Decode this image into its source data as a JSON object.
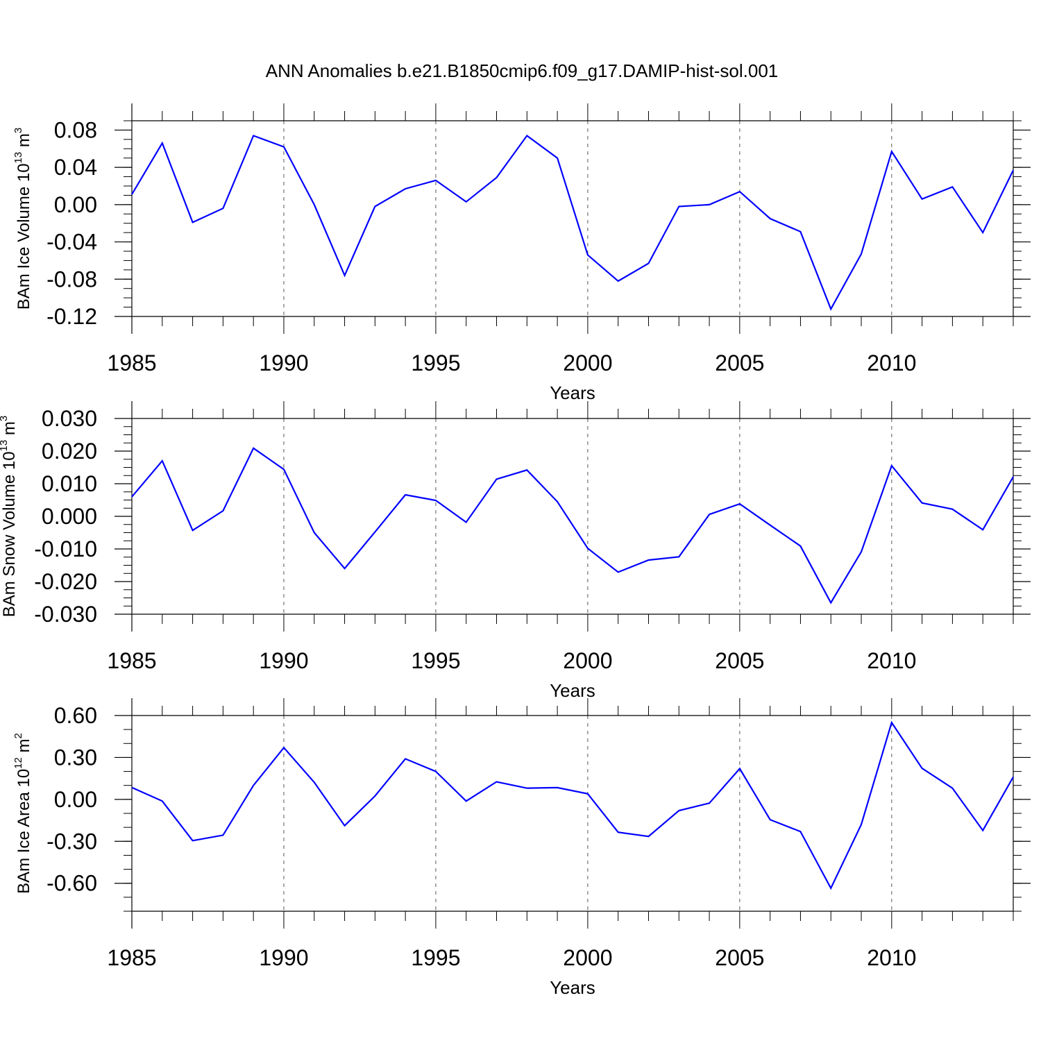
{
  "title": "ANN Anomalies b.e21.B1850cmip6.f09_g17.DAMIP-hist-sol.001",
  "colors": {
    "line": "#0000ff",
    "axis": "#000000",
    "grid": "#555555"
  },
  "chart_data": [
    {
      "type": "line",
      "ylabel": {
        "text": "BAm Ice Volume 10",
        "exp": "13",
        "unit": " m",
        "unit_exp": "3"
      },
      "xlabel": "Years",
      "xlim": [
        1985,
        2014
      ],
      "ylim": [
        -0.12,
        0.09
      ],
      "x_major": [
        1985,
        1990,
        1995,
        2000,
        2005,
        2010
      ],
      "x_tick_labels": [
        "1985",
        "1990",
        "1995",
        "2000",
        "2005",
        "2010"
      ],
      "y_ticks": [
        0.08,
        0.04,
        0.0,
        -0.04,
        -0.08,
        -0.12
      ],
      "y_tick_labels": [
        "0.08",
        "0.04",
        "0.00",
        "-0.04",
        "-0.08",
        "-0.12"
      ],
      "y_minor_step": 0.01,
      "x": [
        1985,
        1986,
        1987,
        1988,
        1989,
        1990,
        1991,
        1992,
        1993,
        1994,
        1995,
        1996,
        1997,
        1998,
        1999,
        2000,
        2001,
        2002,
        2003,
        2004,
        2005,
        2006,
        2007,
        2008,
        2009,
        2010,
        2011,
        2012,
        2013,
        2014
      ],
      "values": [
        0.011,
        0.066,
        -0.019,
        -0.004,
        0.074,
        0.062,
        0.0,
        -0.076,
        -0.002,
        0.017,
        0.026,
        0.003,
        0.029,
        0.074,
        0.05,
        -0.054,
        -0.082,
        -0.063,
        -0.002,
        0.0,
        0.014,
        -0.015,
        -0.029,
        -0.112,
        -0.053,
        0.057,
        0.006,
        0.019,
        -0.03,
        0.037
      ]
    },
    {
      "type": "line",
      "ylabel": {
        "text": "BAm Snow Volume 10",
        "exp": "13",
        "unit": " m",
        "unit_exp": "3"
      },
      "xlabel": "Years",
      "xlim": [
        1985,
        2014
      ],
      "ylim": [
        -0.03,
        0.03
      ],
      "x_major": [
        1985,
        1990,
        1995,
        2000,
        2005,
        2010
      ],
      "x_tick_labels": [
        "1985",
        "1990",
        "1995",
        "2000",
        "2005",
        "2010"
      ],
      "y_ticks": [
        0.03,
        0.02,
        0.01,
        0.0,
        -0.01,
        -0.02,
        -0.03
      ],
      "y_tick_labels": [
        "0.030",
        "0.020",
        "0.010",
        "0.000",
        "-0.010",
        "-0.020",
        "-0.030"
      ],
      "y_minor_step": 0.0025,
      "x": [
        1985,
        1986,
        1987,
        1988,
        1989,
        1990,
        1991,
        1992,
        1993,
        1994,
        1995,
        1996,
        1997,
        1998,
        1999,
        2000,
        2001,
        2002,
        2003,
        2004,
        2005,
        2006,
        2007,
        2008,
        2009,
        2010,
        2011,
        2012,
        2013,
        2014
      ],
      "values": [
        0.006,
        0.017,
        -0.0043,
        0.0017,
        0.0209,
        0.0144,
        -0.005,
        -0.016,
        -0.0048,
        0.0066,
        0.0049,
        -0.0018,
        0.0114,
        0.0142,
        0.0045,
        -0.0098,
        -0.0171,
        -0.0134,
        -0.0124,
        0.0006,
        0.0038,
        -0.0027,
        -0.0091,
        -0.0265,
        -0.0109,
        0.0155,
        0.0041,
        0.0022,
        -0.0041,
        0.0121
      ]
    },
    {
      "type": "line",
      "ylabel": {
        "text": "BAm Ice Area 10",
        "exp": "12",
        "unit": " m",
        "unit_exp": "2"
      },
      "xlabel": "Years",
      "xlim": [
        1985,
        2014
      ],
      "ylim": [
        -0.8,
        0.6
      ],
      "x_major": [
        1985,
        1990,
        1995,
        2000,
        2005,
        2010
      ],
      "x_tick_labels": [
        "1985",
        "1990",
        "1995",
        "2000",
        "2005",
        "2010"
      ],
      "y_ticks": [
        0.6,
        0.3,
        0.0,
        -0.3,
        -0.6
      ],
      "y_tick_labels": [
        "0.60",
        "0.30",
        "0.00",
        "-0.30",
        "-0.60"
      ],
      "y_minor_step": 0.1,
      "x": [
        1985,
        1986,
        1987,
        1988,
        1989,
        1990,
        1991,
        1992,
        1993,
        1994,
        1995,
        1996,
        1997,
        1998,
        1999,
        2000,
        2001,
        2002,
        2003,
        2004,
        2005,
        2006,
        2007,
        2008,
        2009,
        2010,
        2011,
        2012,
        2013,
        2014
      ],
      "values": [
        0.085,
        -0.012,
        -0.295,
        -0.256,
        0.1,
        0.37,
        0.122,
        -0.188,
        0.024,
        0.29,
        0.2,
        -0.012,
        0.126,
        0.08,
        0.084,
        0.04,
        -0.235,
        -0.265,
        -0.08,
        -0.027,
        0.22,
        -0.145,
        -0.23,
        -0.635,
        -0.18,
        0.55,
        0.222,
        0.08,
        -0.222,
        0.16
      ]
    }
  ]
}
